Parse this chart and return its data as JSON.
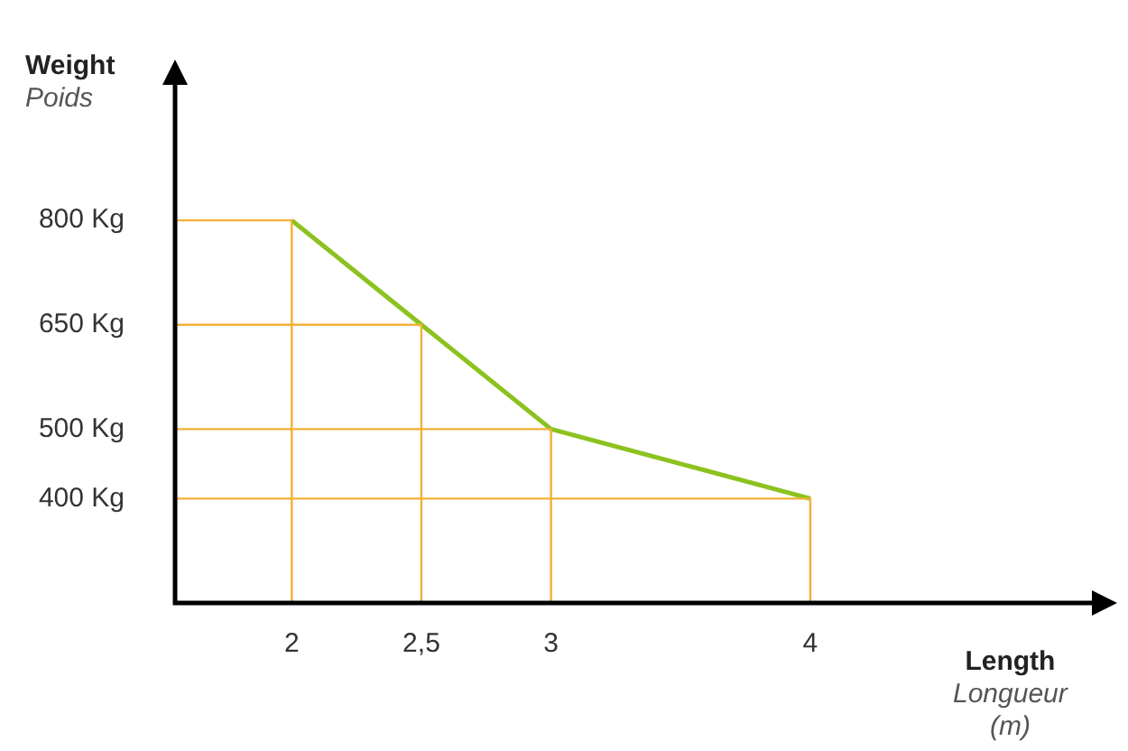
{
  "chart_data": {
    "type": "line",
    "xlabel": "Length\nLongueur\n(m)",
    "ylabel": "Weight\nPoids",
    "x": [
      2,
      2.5,
      3,
      4
    ],
    "series": [
      {
        "color": "#f2b035",
        "x": [
          1.55,
          2,
          2
        ],
        "values": [
          800,
          800,
          250
        ]
      },
      {
        "color": "#f2b035",
        "x": [
          1.55,
          2.5,
          2.5
        ],
        "values": [
          650,
          650,
          250
        ]
      },
      {
        "color": "#f2b035",
        "x": [
          1.55,
          3,
          3
        ],
        "values": [
          500,
          500,
          250
        ]
      },
      {
        "color": "#f2b035",
        "x": [
          1.55,
          4,
          4
        ],
        "values": [
          400,
          400,
          250
        ]
      },
      {
        "color": "#8cc21f",
        "values": [
          800,
          650,
          500,
          400
        ]
      }
    ],
    "xlim": [
      1.55,
      5.1
    ],
    "xticks": [
      2,
      {
        "value": 2.5,
        "label": "2,5"
      },
      3,
      4
    ],
    "ylim": [
      250,
      1000
    ],
    "yticks": [
      {
        "value": 400,
        "label": "400 Kg"
      },
      {
        "value": 500,
        "label": "500 Kg"
      },
      {
        "value": 650,
        "label": "650 Kg"
      },
      {
        "value": 800,
        "label": "800 Kg"
      }
    ],
    "grid": false,
    "legend": false,
    "marker": "none",
    "line_style": "solid"
  }
}
